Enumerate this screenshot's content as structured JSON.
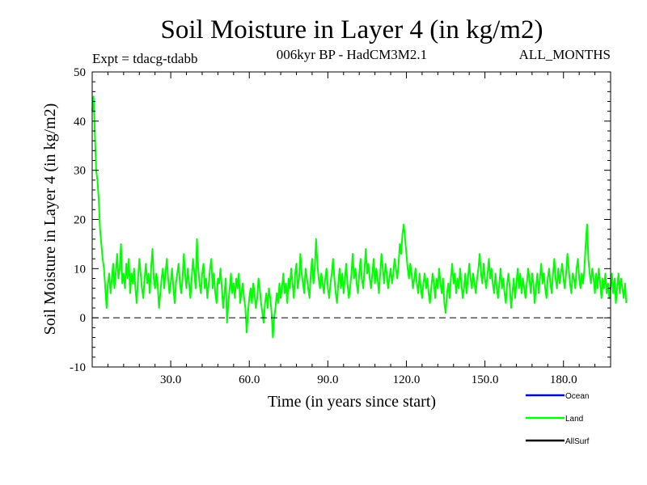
{
  "chart_data": {
    "type": "line",
    "title": "Soil Moisture in Layer 4 (in kg/m2)",
    "subtitle": "006kyr BP - HadCM3M2.1",
    "experiment": "Expt = tdacg-tdabb",
    "season": "ALL_MONTHS",
    "xlabel": "Time (in years since start)",
    "ylabel": "Soil Moisture in Layer 4 (in kg/m2)",
    "xlim": [
      0,
      198
    ],
    "ylim": [
      -10,
      50
    ],
    "x_ticks": [
      30,
      60,
      90,
      120,
      150,
      180
    ],
    "x_tick_labels": [
      "30.0",
      "60.0",
      "90.0",
      "120.0",
      "150.0",
      "180.0"
    ],
    "y_ticks": [
      -10,
      0,
      10,
      20,
      30,
      40,
      50
    ],
    "y_tick_labels": [
      "-10",
      "0",
      "10",
      "20",
      "30",
      "40",
      "50"
    ],
    "reference_line": 0,
    "legend": [
      {
        "name": "Ocean",
        "color": "#0000cc"
      },
      {
        "name": "Land",
        "color": "#00ff00"
      },
      {
        "name": "AllSurf",
        "color": "#000000"
      }
    ],
    "series": [
      {
        "name": "Land",
        "color": "#00ff00",
        "x_start": 0,
        "x_step": 0.5,
        "values": [
          42,
          45,
          38,
          30,
          28,
          24,
          18,
          15,
          12,
          10,
          6,
          2,
          7,
          9,
          5,
          8,
          11,
          6,
          9,
          13,
          8,
          10,
          15,
          7,
          9,
          6,
          11,
          8,
          12,
          5,
          9,
          7,
          10,
          6,
          3,
          8,
          12,
          9,
          6,
          4,
          8,
          11,
          7,
          9,
          5,
          10,
          14,
          8,
          6,
          9,
          7,
          2,
          5,
          8,
          10,
          6,
          9,
          12,
          8,
          5,
          7,
          10,
          6,
          3,
          7,
          9,
          11,
          7,
          5,
          8,
          13,
          9,
          6,
          10,
          7,
          4,
          8,
          12,
          9,
          6,
          16,
          10,
          7,
          5,
          9,
          11,
          6,
          8,
          4,
          7,
          10,
          12,
          6,
          9,
          5,
          3,
          8,
          7,
          10,
          6,
          2,
          5,
          8,
          -1,
          3,
          6,
          9,
          5,
          7,
          4,
          8,
          6,
          9,
          3,
          5,
          7,
          4,
          2,
          -3,
          1,
          4,
          6,
          3,
          7,
          5,
          2,
          4,
          8,
          6,
          3,
          1,
          -1,
          3,
          5,
          2,
          6,
          4,
          1,
          -4,
          0,
          2,
          5,
          3,
          7,
          4,
          6,
          9,
          5,
          7,
          3,
          8,
          6,
          10,
          7,
          4,
          9,
          11,
          6,
          8,
          13,
          9,
          7,
          5,
          10,
          8,
          6,
          4,
          9,
          12,
          7,
          10,
          16,
          11,
          8,
          6,
          9,
          7,
          5,
          8,
          10,
          6,
          4,
          7,
          9,
          12,
          8,
          5,
          3,
          7,
          10,
          6,
          9,
          5,
          8,
          11,
          7,
          4,
          6,
          9,
          13,
          8,
          10,
          7,
          5,
          9,
          12,
          8,
          6,
          10,
          14,
          9,
          11,
          8,
          6,
          9,
          12,
          7,
          10,
          8,
          5,
          9,
          13,
          10,
          7,
          11,
          9,
          6,
          8,
          10,
          7,
          9,
          12,
          10,
          8,
          11,
          15,
          13,
          17,
          19,
          16,
          13,
          10,
          8,
          11,
          9,
          6,
          8,
          10,
          7,
          5,
          9,
          6,
          4,
          7,
          9,
          6,
          8,
          5,
          3,
          6,
          9,
          7,
          4,
          8,
          6,
          10,
          7,
          5,
          8,
          3,
          1,
          5,
          7,
          4,
          8,
          11,
          7,
          9,
          5,
          8,
          6,
          10,
          7,
          4,
          6,
          9,
          5,
          8,
          11,
          8,
          6,
          9,
          7,
          5,
          8,
          10,
          13,
          9,
          7,
          11,
          8,
          6,
          9,
          12,
          8,
          10,
          7,
          5,
          9,
          6,
          4,
          7,
          10,
          6,
          8,
          5,
          3,
          7,
          9,
          6,
          2,
          5,
          8,
          4,
          7,
          10,
          6,
          9,
          5,
          8,
          6,
          4,
          7,
          10,
          8,
          5,
          9,
          7,
          3,
          6,
          9,
          5,
          8,
          11,
          7,
          9,
          6,
          4,
          8,
          10,
          7,
          5,
          9,
          12,
          8,
          6,
          10,
          7,
          9,
          11,
          8,
          6,
          9,
          13,
          10,
          7,
          5,
          9,
          8,
          6,
          10,
          12,
          8,
          6,
          9,
          7,
          10,
          15,
          19,
          12,
          9,
          7,
          10,
          8,
          5,
          9,
          6,
          10,
          7,
          4,
          8,
          6,
          9,
          5,
          7,
          4,
          6,
          9,
          5,
          8,
          3,
          6,
          9,
          5,
          8,
          6,
          4,
          7,
          3
        ]
      }
    ]
  }
}
